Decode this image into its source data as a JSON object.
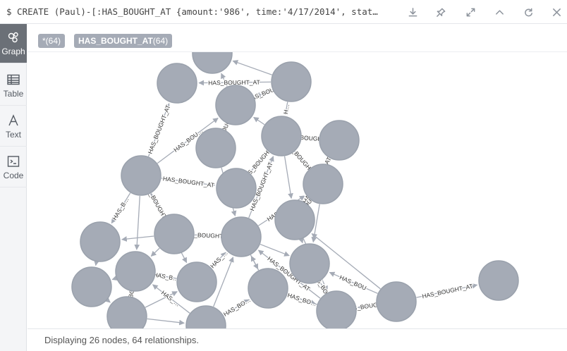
{
  "command": "$ CREATE (Paul)-[:HAS_BOUGHT_AT {amount:'986', time:'4/17/2014', stat…",
  "sidebar": {
    "items": [
      {
        "label": "Graph",
        "icon": "graph-icon"
      },
      {
        "label": "Table",
        "icon": "table-icon"
      },
      {
        "label": "Text",
        "icon": "text-icon"
      },
      {
        "label": "Code",
        "icon": "code-icon"
      }
    ]
  },
  "legend": {
    "all_label": "*(64)",
    "rel_name": "HAS_BOUGHT_AT",
    "rel_count": "(64)"
  },
  "status": "Displaying 26 nodes, 64 relationships.",
  "edge_labels": [
    "HAS_BOU…",
    "HAS_BOUGHT_AT",
    "H…",
    "HAS_BOUGHT_AT",
    "HAS_BOUGHT_AT",
    "HAS_BOU…",
    "HAS_BOUGHT_AT",
    "HAS_BOUGHT_AT",
    "HAS_BOUGHT…",
    "HAS_BOUGHT_AT",
    "HAS_BOU…",
    "HAS_BOUGHT_AT",
    "HAS_BOUGHT_AT",
    "HAS_BOUGHT_AT",
    "HAS_B…",
    "HAS_BOUGHT_AT",
    "HAS_B…",
    "HAS_…",
    "HAS_BOU…",
    "HAS_BOUGHT_AT",
    "HAS_BO…",
    "HAS_BOUGH…",
    "HAS_BOU",
    "HAS_BOUG…",
    "HAS_BOUGHT_AT",
    "HAS_BO…",
    "HAS_…",
    "HAS_BOUGHT_AT",
    "HAS_BOU…"
  ],
  "colors": {
    "node_fill": "#a5abb6",
    "node_stroke": "#9aa1ac",
    "edge": "#a5abb6",
    "label": "#333333",
    "active_tab": "#6b7077"
  }
}
